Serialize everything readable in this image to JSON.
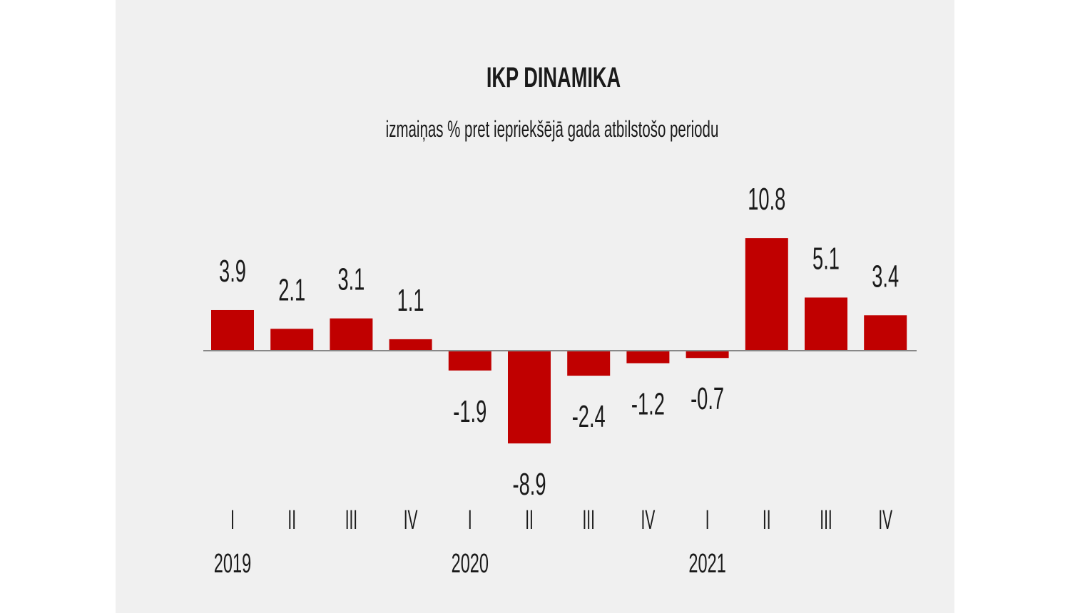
{
  "chart_data": {
    "type": "bar",
    "title": "IKP DINAMIKA",
    "subtitle": "izmaiņas % pret iepriekšējā gada atbilstošo periodu",
    "categories": [
      "I",
      "II",
      "III",
      "IV",
      "I",
      "II",
      "III",
      "IV",
      "I",
      "II",
      "III",
      "IV"
    ],
    "years": [
      {
        "label": "2019",
        "start_index": 0
      },
      {
        "label": "2020",
        "start_index": 4
      },
      {
        "label": "2021",
        "start_index": 8
      }
    ],
    "values": [
      3.9,
      2.1,
      3.1,
      1.1,
      -1.9,
      -8.9,
      -2.4,
      -1.2,
      -0.7,
      10.8,
      5.1,
      3.4
    ],
    "value_labels": [
      "3.9",
      "2.1",
      "3.1",
      "1.1",
      "-1.9",
      "-8.9",
      "-2.4",
      "-1.2",
      "-0.7",
      "10.8",
      "5.1",
      "3.4"
    ],
    "xlabel": "",
    "ylabel": "",
    "ylim": [
      -8.9,
      10.8
    ],
    "grid": false,
    "colors": {
      "bar": "#c00000",
      "background": "#f0f0f0",
      "axis": "#888888"
    }
  }
}
